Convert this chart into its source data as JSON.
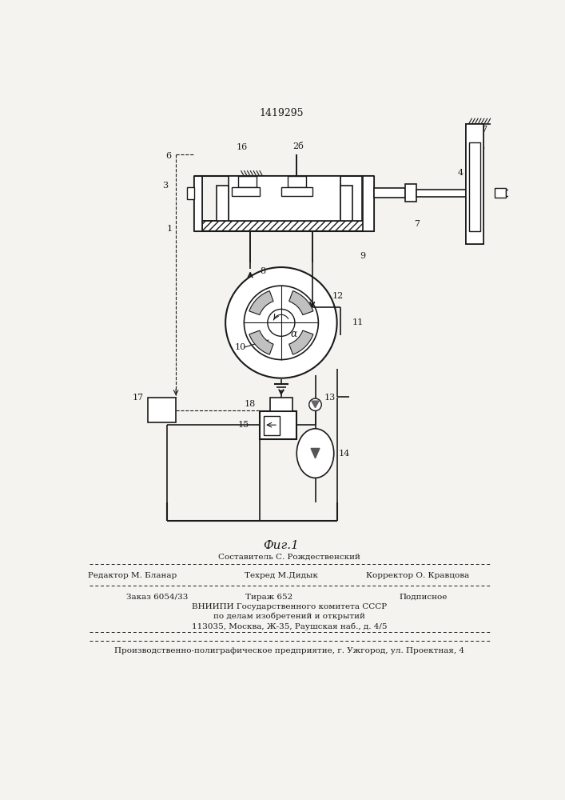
{
  "patent_number": "1419295",
  "fig_caption": "Фиг.1",
  "bg_color": "#f5f3ef",
  "line_color": "#1a1a1a",
  "footer": {
    "line1_center": "Составитель С. Рождественский",
    "line2_left": "Редактор М. Бланар",
    "line2_center": "Техред М.Дидык",
    "line2_right": "Корректор О. Кравцова",
    "line3_left": "Заказ 6054/33",
    "line3_center": "Тираж 652",
    "line3_right": "Подписное",
    "line4": "ВНИИПИ Государственного комитета СССР",
    "line5": "по делам изобретений и открытий",
    "line6": "113035, Москва, Ж-35, Раушская наб., д. 4/5",
    "line7": "Производственно-полиграфическое предприятие, г. Ужгород, ул. Проектная, 4"
  }
}
